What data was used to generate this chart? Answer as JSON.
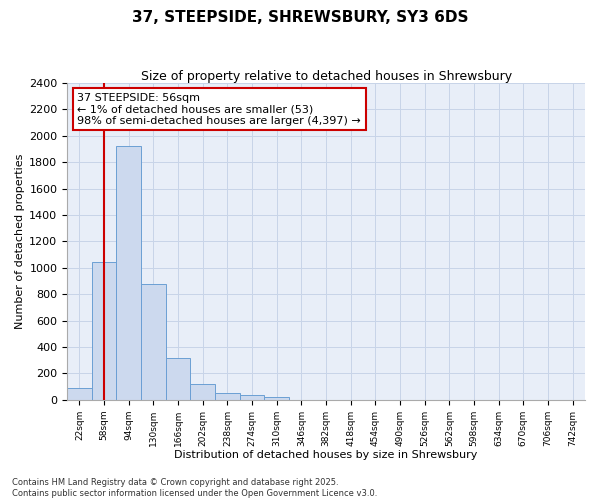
{
  "title": "37, STEEPSIDE, SHREWSBURY, SY3 6DS",
  "subtitle": "Size of property relative to detached houses in Shrewsbury",
  "xlabel": "Distribution of detached houses by size in Shrewsbury",
  "ylabel": "Number of detached properties",
  "footer": "Contains HM Land Registry data © Crown copyright and database right 2025.\nContains public sector information licensed under the Open Government Licence v3.0.",
  "bins": [
    "22sqm",
    "58sqm",
    "94sqm",
    "130sqm",
    "166sqm",
    "202sqm",
    "238sqm",
    "274sqm",
    "310sqm",
    "346sqm",
    "382sqm",
    "418sqm",
    "454sqm",
    "490sqm",
    "526sqm",
    "562sqm",
    "598sqm",
    "634sqm",
    "670sqm",
    "706sqm",
    "742sqm"
  ],
  "bar_heights": [
    90,
    1040,
    1920,
    880,
    320,
    120,
    50,
    35,
    20,
    0,
    0,
    0,
    0,
    0,
    0,
    0,
    0,
    0,
    0,
    0,
    0
  ],
  "bar_color": "#ccd9ee",
  "bar_edge_color": "#6b9fd4",
  "grid_color": "#c8d4e8",
  "background_color": "#e8eef8",
  "annotation_box_color": "#cc0000",
  "annotation_line_color": "#cc0000",
  "property_line_bin_index": 1.0,
  "annotation_text_line1": "37 STEEPSIDE: 56sqm",
  "annotation_text_line2": "← 1% of detached houses are smaller (53)",
  "annotation_text_line3": "98% of semi-detached houses are larger (4,397) →",
  "ylim": [
    0,
    2400
  ],
  "yticks": [
    0,
    200,
    400,
    600,
    800,
    1000,
    1200,
    1400,
    1600,
    1800,
    2000,
    2200,
    2400
  ],
  "title_fontsize": 11,
  "subtitle_fontsize": 9,
  "ylabel_fontsize": 8,
  "xlabel_fontsize": 8,
  "tick_fontsize": 8,
  "ann_fontsize": 8,
  "footer_fontsize": 6
}
